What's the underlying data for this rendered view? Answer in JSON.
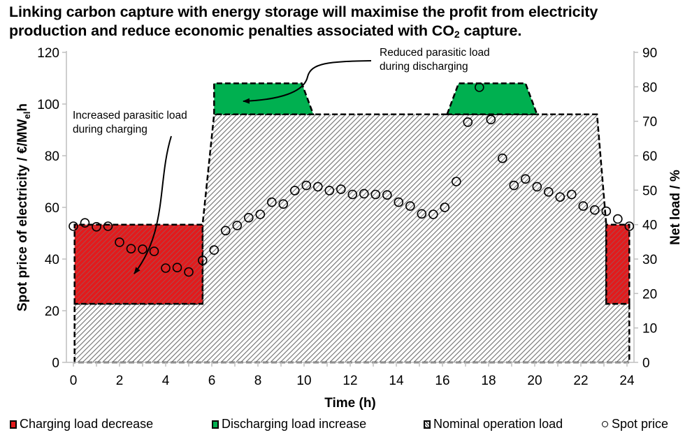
{
  "title": {
    "line1": "Linking carbon capture with energy storage will maximise the profit from electricity",
    "line2_pre": "production and reduce economic penalties associated with CO",
    "line2_sub": "2",
    "line2_post": " capture."
  },
  "chart_data": {
    "type": "area",
    "title": "Linking carbon capture with energy storage will maximise the profit from electricity production and reduce economic penalties associated with CO2 capture.",
    "xlabel": "Time (h)",
    "ylabel_left": "Spot price of electricity / €/MWelh",
    "ylabel_left_parts": {
      "main": "Spot price of electricity / €/MW",
      "sub": "el",
      "tail": "h"
    },
    "ylabel_right": "Net load / %",
    "xlim": [
      0,
      24
    ],
    "ylim_left": [
      0,
      120
    ],
    "ylim_right": [
      0,
      90
    ],
    "x_ticks": [
      0,
      2,
      4,
      6,
      8,
      10,
      12,
      14,
      16,
      18,
      20,
      22,
      24
    ],
    "y_left_ticks": [
      0,
      20,
      40,
      60,
      80,
      100,
      120
    ],
    "y_right_ticks": [
      0,
      10,
      20,
      30,
      40,
      50,
      60,
      70,
      80,
      90
    ],
    "grid": false,
    "legend_position": "bottom",
    "series": [
      {
        "name": "Nominal operation load",
        "axis": "right",
        "kind": "area",
        "color": "#7f7f7f",
        "pattern": "diagonal-hatch",
        "points": [
          [
            0.05,
            0
          ],
          [
            0.05,
            17
          ],
          [
            5.6,
            17
          ],
          [
            5.6,
            40
          ],
          [
            6.1,
            72
          ],
          [
            22.7,
            72
          ],
          [
            23.1,
            40
          ],
          [
            23.1,
            17
          ],
          [
            24.1,
            17
          ],
          [
            24.1,
            0
          ]
        ]
      },
      {
        "name": "Charging load decrease",
        "axis": "right",
        "kind": "area",
        "color": "#e31a1c",
        "pattern": "diagonal-hatch",
        "regions": [
          [
            [
              0.05,
              17
            ],
            [
              0.05,
              40
            ],
            [
              5.6,
              40
            ],
            [
              5.6,
              17
            ]
          ],
          [
            [
              23.1,
              17
            ],
            [
              23.1,
              40
            ],
            [
              24.1,
              40
            ],
            [
              24.1,
              17
            ]
          ]
        ]
      },
      {
        "name": "Discharging load increase",
        "axis": "right",
        "kind": "area",
        "color": "#00b050",
        "regions": [
          [
            [
              6.1,
              72
            ],
            [
              6.1,
              81
            ],
            [
              9.9,
              81
            ],
            [
              10.4,
              72
            ]
          ],
          [
            [
              16.2,
              72
            ],
            [
              16.7,
              81
            ],
            [
              19.6,
              81
            ],
            [
              20.1,
              72
            ]
          ]
        ]
      },
      {
        "name": "Spot price",
        "axis": "left",
        "kind": "scatter",
        "marker": "open-circle",
        "x": [
          0,
          0.5,
          1,
          1.5,
          2,
          2.5,
          3,
          3.5,
          4,
          4.5,
          5,
          5.6,
          6.1,
          6.6,
          7.1,
          7.6,
          8.1,
          8.6,
          9.1,
          9.6,
          10.1,
          10.6,
          11.1,
          11.6,
          12.1,
          12.6,
          13.1,
          13.6,
          14.1,
          14.6,
          15.1,
          15.6,
          16.1,
          16.6,
          17.1,
          17.6,
          18.1,
          18.6,
          19.1,
          19.6,
          20.1,
          20.6,
          21.1,
          21.6,
          22.1,
          22.6,
          23.1,
          23.6,
          24.1
        ],
        "values": [
          52.7,
          54,
          52.5,
          52.7,
          46.5,
          44,
          43.8,
          43,
          36.5,
          36.7,
          35,
          39.5,
          43.5,
          51,
          53,
          56,
          57.3,
          62,
          61.3,
          66.5,
          68.5,
          68,
          66.5,
          67,
          65,
          65.3,
          65,
          64.8,
          62,
          60.5,
          57.5,
          57.3,
          60,
          70,
          93,
          106.5,
          94,
          79,
          68.5,
          71,
          68,
          66,
          64,
          65,
          60.5,
          59,
          58.5,
          55.5,
          52.7
        ]
      }
    ],
    "annotations": [
      {
        "text": "Increased parasitic load\nduring charging",
        "line1": "Increased parasitic load",
        "line2": "during charging",
        "points_to": "Charging load decrease"
      },
      {
        "text": "Reduced parasitic load\nduring discharging",
        "line1": "Reduced parasitic load",
        "line2": "during discharging",
        "points_to": "Discharging load increase"
      }
    ],
    "legend": [
      {
        "label": "Charging load decrease",
        "color": "#e31a1c"
      },
      {
        "label": "Discharging load increase",
        "color": "#00b050"
      },
      {
        "label": "Nominal operation load",
        "color": "#7f7f7f"
      },
      {
        "label": "Spot price",
        "color": "#000000"
      }
    ]
  }
}
